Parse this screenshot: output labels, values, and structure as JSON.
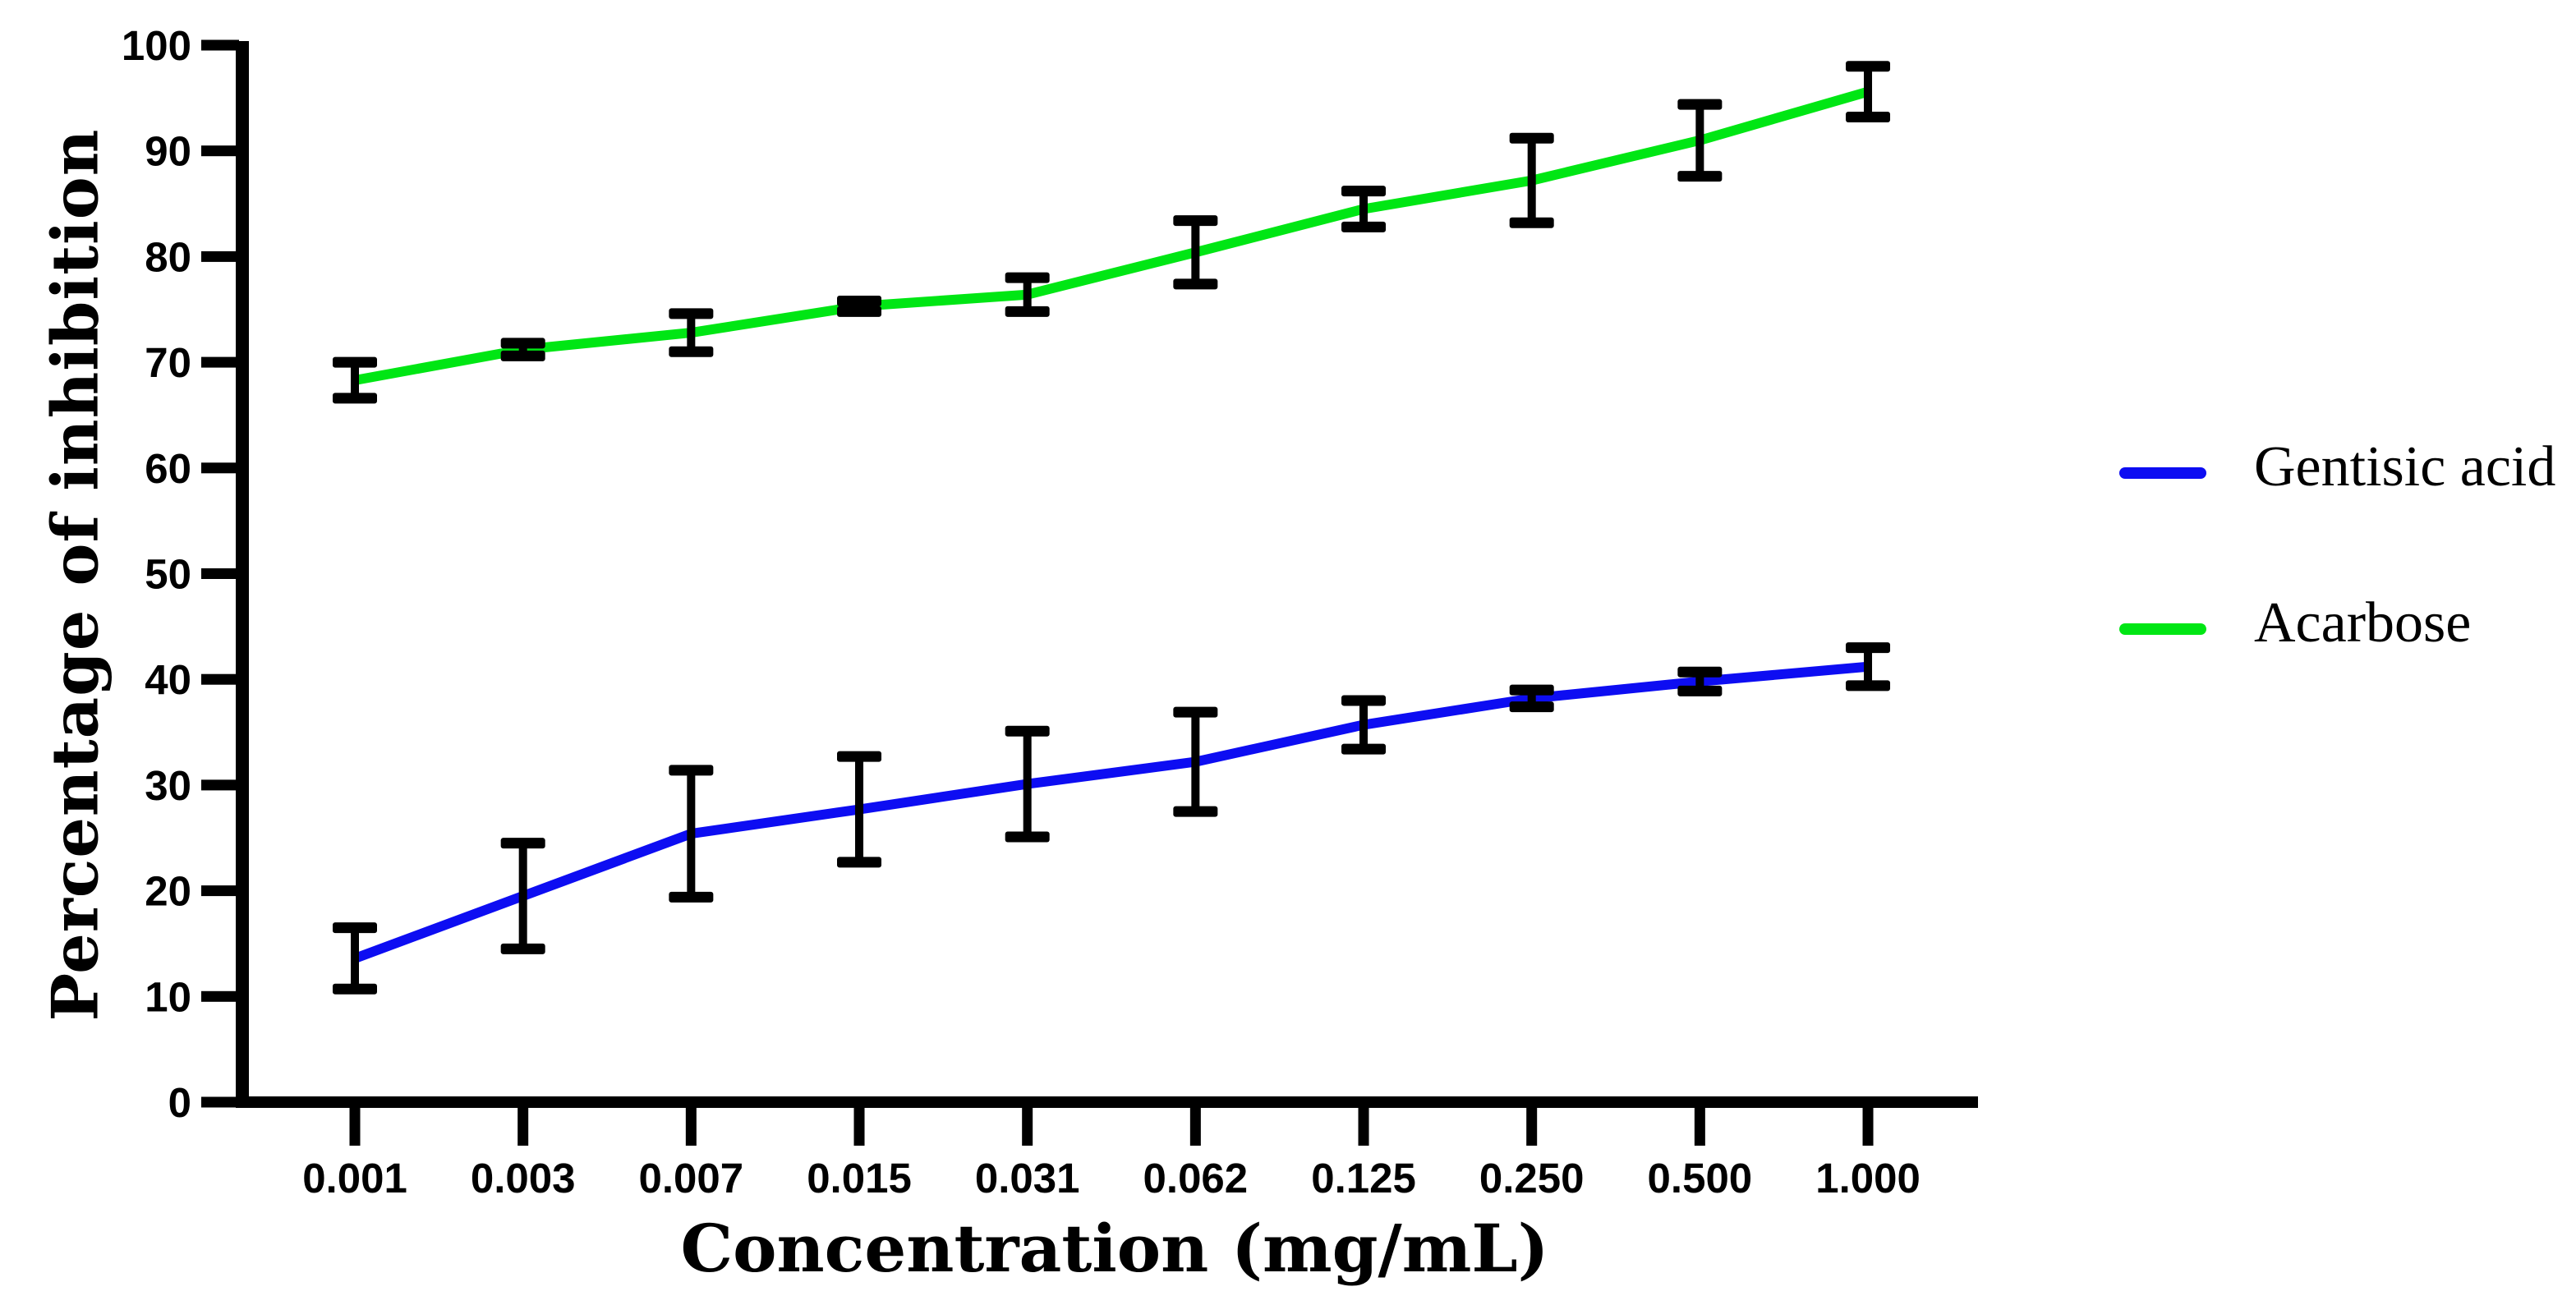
{
  "chart_data": {
    "type": "line",
    "title": "",
    "xlabel": "Concentration (mg/mL)",
    "ylabel": "Percentage of inhibition",
    "categories": [
      "0.001",
      "0.003",
      "0.007",
      "0.015",
      "0.031",
      "0.062",
      "0.125",
      "0.250",
      "0.500",
      "1.000"
    ],
    "y_ticks": [
      0,
      10,
      20,
      30,
      40,
      50,
      60,
      70,
      80,
      90,
      100
    ],
    "ylim": [
      0,
      100
    ],
    "grid": false,
    "legend_position": "right",
    "axis_color": "#000000",
    "error_bar_color": "#000000",
    "background_color": "#ffffff",
    "series": [
      {
        "name": "Gentisic acid",
        "color": "#0d0df2",
        "values": [
          13.6,
          19.5,
          25.4,
          27.7,
          30.1,
          32.2,
          35.7,
          38.2,
          39.8,
          41.2
        ],
        "errors": [
          2.9,
          5.0,
          6.0,
          5.0,
          5.0,
          4.7,
          2.3,
          0.8,
          0.9,
          1.8
        ]
      },
      {
        "name": "Acarbose",
        "color": "#00e614",
        "values": [
          68.3,
          71.2,
          72.8,
          75.3,
          76.4,
          80.4,
          84.5,
          87.2,
          91.0,
          95.6
        ],
        "errors": [
          1.7,
          0.6,
          1.8,
          0.5,
          1.6,
          3.0,
          1.7,
          4.0,
          3.4,
          2.4
        ]
      }
    ]
  },
  "legend": {
    "items": [
      {
        "label": "Gentisic acid"
      },
      {
        "label": "Acarbose"
      }
    ]
  }
}
